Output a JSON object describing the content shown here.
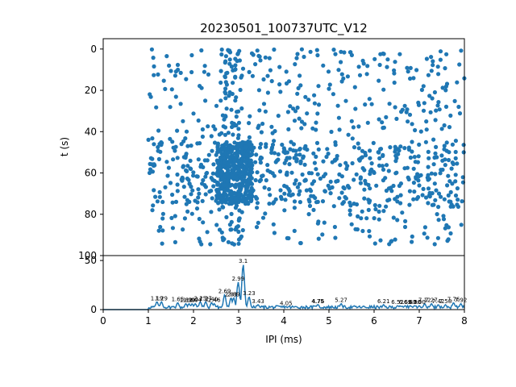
{
  "colors": {
    "series": "#1f77b4",
    "axis": "#000000",
    "background": "#ffffff"
  },
  "chart_data": [
    {
      "type": "scatter",
      "title": "20230501_100737UTC_V12",
      "xlabel": "",
      "ylabel": "t (s)",
      "xlim": [
        0,
        8
      ],
      "ylim": [
        100,
        -5
      ],
      "y_inverted": true,
      "yticks": [
        "0",
        "20",
        "40",
        "60",
        "80",
        "100"
      ],
      "grid": false,
      "legend": "none",
      "dense_x_ranges": [
        [
          1.0,
          8.0
        ]
      ],
      "cluster_x_ranges": [
        [
          2.5,
          3.3
        ]
      ],
      "cluster_y_range": [
        45,
        75
      ]
    },
    {
      "type": "line",
      "xlabel": "IPI (ms)",
      "ylabel": "",
      "xlim": [
        0,
        8
      ],
      "ylim": [
        0,
        55
      ],
      "xticks": [
        "0",
        "1",
        "2",
        "3",
        "4",
        "5",
        "6",
        "7",
        "8"
      ],
      "yticks": [
        "0",
        "50"
      ],
      "grid": false,
      "legend": "none",
      "peaks": [
        {
          "x": 1.19,
          "y": 8,
          "label": "1.19"
        },
        {
          "x": 1.29,
          "y": 8,
          "label": "1.29"
        },
        {
          "x": 1.65,
          "y": 7,
          "label": "1.65"
        },
        {
          "x": 1.83,
          "y": 6,
          "label": "1.83"
        },
        {
          "x": 1.9,
          "y": 6,
          "label": "1.90"
        },
        {
          "x": 1.97,
          "y": 6,
          "label": "1.97"
        },
        {
          "x": 2.04,
          "y": 6,
          "label": "2.04"
        },
        {
          "x": 2.15,
          "y": 8,
          "label": "2.15"
        },
        {
          "x": 2.27,
          "y": 8,
          "label": "2.27"
        },
        {
          "x": 2.4,
          "y": 7,
          "label": "2.40"
        },
        {
          "x": 2.46,
          "y": 6,
          "label": "2.46"
        },
        {
          "x": 2.69,
          "y": 15,
          "label": "2.69"
        },
        {
          "x": 2.83,
          "y": 12,
          "label": "2.83"
        },
        {
          "x": 2.89,
          "y": 12,
          "label": "2.89"
        },
        {
          "x": 2.99,
          "y": 28,
          "label": "2.99"
        },
        {
          "x": 3.1,
          "y": 46,
          "label": "3.1"
        },
        {
          "x": 3.23,
          "y": 13,
          "label": "3.23"
        },
        {
          "x": 3.43,
          "y": 5,
          "label": "3.43"
        },
        {
          "x": 4.05,
          "y": 3,
          "label": "4.05"
        },
        {
          "x": 4.75,
          "y": 5,
          "label": "4.75"
        },
        {
          "x": 4.76,
          "y": 5,
          "label": "4.76"
        },
        {
          "x": 5.27,
          "y": 6,
          "label": "5.27"
        },
        {
          "x": 6.21,
          "y": 5,
          "label": "6.21"
        },
        {
          "x": 6.52,
          "y": 4,
          "label": "6.52"
        },
        {
          "x": 6.69,
          "y": 4,
          "label": "6.69"
        },
        {
          "x": 6.8,
          "y": 4,
          "label": "6.80"
        },
        {
          "x": 6.9,
          "y": 4,
          "label": "6.90"
        },
        {
          "x": 7.0,
          "y": 4,
          "label": "7.00"
        },
        {
          "x": 7.12,
          "y": 6,
          "label": "7.12"
        },
        {
          "x": 7.27,
          "y": 6,
          "label": "7.27"
        },
        {
          "x": 7.42,
          "y": 5,
          "label": "7.42"
        },
        {
          "x": 7.58,
          "y": 5,
          "label": "7.58"
        },
        {
          "x": 7.76,
          "y": 7,
          "label": "7.76"
        },
        {
          "x": 7.92,
          "y": 6,
          "label": "7.92"
        }
      ]
    }
  ]
}
